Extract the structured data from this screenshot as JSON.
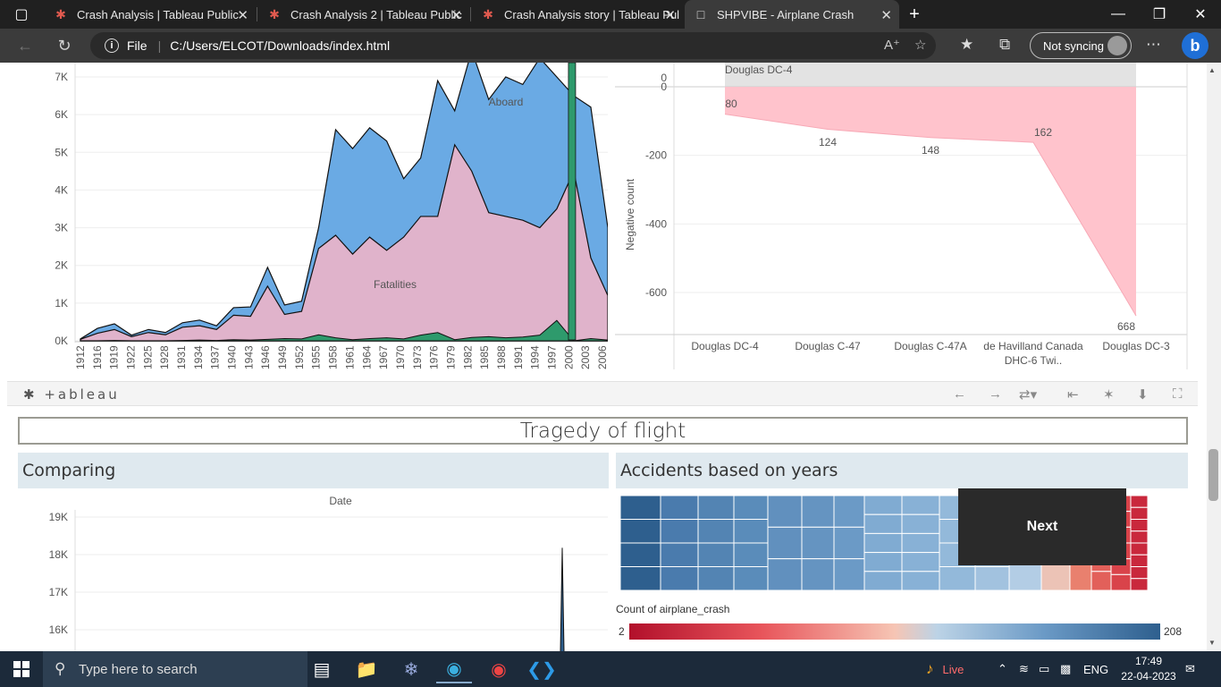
{
  "browser": {
    "tabs": [
      {
        "label": "Crash Analysis | Tableau Public",
        "active": false
      },
      {
        "label": "Crash Analysis 2 | Tableau Public",
        "active": false
      },
      {
        "label": "Crash Analysis story | Tableau Pul",
        "active": false
      },
      {
        "label": "SHPVIBE - Airplane Crash",
        "active": true
      }
    ],
    "address": {
      "scheme_label": "File",
      "url": "C:/Users/ELCOT/Downloads/index.html"
    },
    "sync_label": "Not syncing"
  },
  "chart_data": [
    {
      "type": "area",
      "x_tick_labels": [
        "1912",
        "1916",
        "1919",
        "1922",
        "1925",
        "1928",
        "1931",
        "1934",
        "1937",
        "1940",
        "1943",
        "1946",
        "1949",
        "1952",
        "1955",
        "1958",
        "1961",
        "1964",
        "1967",
        "1970",
        "1973",
        "1976",
        "1979",
        "1982",
        "1985",
        "1988",
        "1991",
        "1994",
        "1997",
        "2000",
        "2003",
        "2006"
      ],
      "y_tick_labels": [
        "0K",
        "1K",
        "2K",
        "3K",
        "4K",
        "5K",
        "6K",
        "7K"
      ],
      "ylim": [
        0,
        7000
      ],
      "series": [
        {
          "name": "Aboard",
          "color": "#6aaae4",
          "values": [
            50,
            330,
            450,
            150,
            300,
            220,
            480,
            550,
            400,
            880,
            900,
            1950,
            950,
            1050,
            3000,
            5600,
            5100,
            5650,
            5300,
            4300,
            4850,
            6900,
            6100,
            7700,
            6400,
            7000,
            6800,
            7500,
            7000,
            6500,
            6200,
            3000
          ]
        },
        {
          "name": "Fatalities",
          "color": "#e0b3cb",
          "values": [
            40,
            200,
            300,
            110,
            220,
            160,
            360,
            400,
            300,
            680,
            650,
            1450,
            700,
            780,
            2450,
            2800,
            2300,
            2750,
            2400,
            2750,
            3300,
            3300,
            5200,
            4500,
            3400,
            3300,
            3200,
            3000,
            3500,
            4500,
            2200,
            1200
          ]
        },
        {
          "name": "",
          "color": "#2e9a6c",
          "values": [
            0,
            0,
            10,
            0,
            0,
            0,
            10,
            20,
            10,
            30,
            20,
            40,
            60,
            50,
            160,
            80,
            30,
            60,
            80,
            50,
            150,
            220,
            30,
            90,
            110,
            80,
            100,
            150,
            540,
            0,
            60,
            20
          ]
        }
      ],
      "series_labels": [
        "Aboard",
        "Fatalities"
      ]
    },
    {
      "type": "area",
      "header_category": "Douglas DC-4",
      "header_value": "0",
      "categories": [
        "Douglas DC-4",
        "Douglas C-47",
        "Douglas C-47A",
        "de Havilland Canada DHC-6 Twi..",
        "Douglas DC-3"
      ],
      "values": [
        -80,
        -124,
        -148,
        -162,
        -668
      ],
      "data_labels": [
        "80",
        "124",
        "148",
        "162",
        "668"
      ],
      "ylabel": "Negative count",
      "y_tick_labels": [
        "0",
        "-200",
        "-400",
        "-600"
      ],
      "ylim": [
        -720,
        0
      ],
      "color": "#ffc3cc"
    },
    {
      "type": "line",
      "title": "Date",
      "y_tick_labels": [
        "19K",
        "18K",
        "17K",
        "16K"
      ],
      "ylim": [
        15400,
        19400
      ],
      "spike_value": 18300
    }
  ],
  "tableau": {
    "logo": "+ableau"
  },
  "dashboard": {
    "title": "Tragedy of flight",
    "left_panel_title": "Comparing",
    "right_panel_title": "Accidents based on years",
    "next_label": "Next",
    "legend_title": "Count of airplane_crash",
    "legend_min": "2",
    "legend_max": "208"
  },
  "taskbar": {
    "search_placeholder": "Type here to search",
    "live_label": "Live",
    "lang": "ENG",
    "time": "17:49",
    "date": "22-04-2023"
  }
}
